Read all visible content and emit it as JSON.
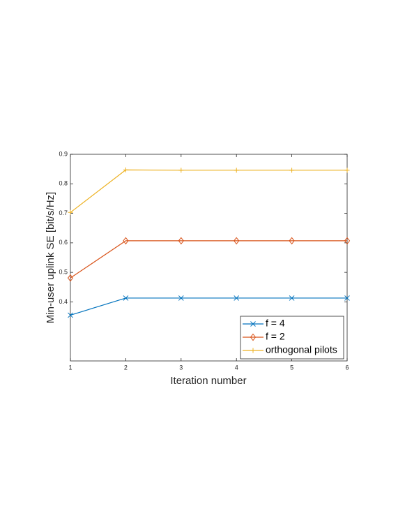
{
  "chart_data": {
    "type": "line",
    "xlabel": "Iteration number",
    "ylabel": "Min-user uplink SE [bit/s/Hz]",
    "x": [
      1,
      2,
      3,
      4,
      5,
      6
    ],
    "series": [
      {
        "name": "f = 4",
        "color": "#0072BD",
        "marker": "x",
        "values": [
          0.355,
          0.413,
          0.413,
          0.413,
          0.413,
          0.413
        ]
      },
      {
        "name": "f = 2",
        "color": "#D95319",
        "marker": "diamond",
        "values": [
          0.481,
          0.607,
          0.607,
          0.607,
          0.607,
          0.607
        ]
      },
      {
        "name": "orthogonal pilots",
        "color": "#EDB120",
        "marker": "plus",
        "values": [
          0.703,
          0.847,
          0.846,
          0.846,
          0.846,
          0.846
        ]
      }
    ],
    "xlim": [
      1,
      6
    ],
    "xticks": [
      1,
      2,
      3,
      4,
      5,
      6
    ],
    "ylim": [
      0.2,
      0.9
    ],
    "yticks": [
      0.4,
      0.5,
      0.6,
      0.7,
      0.8,
      0.9
    ],
    "legend": "southeast",
    "grid": false
  }
}
